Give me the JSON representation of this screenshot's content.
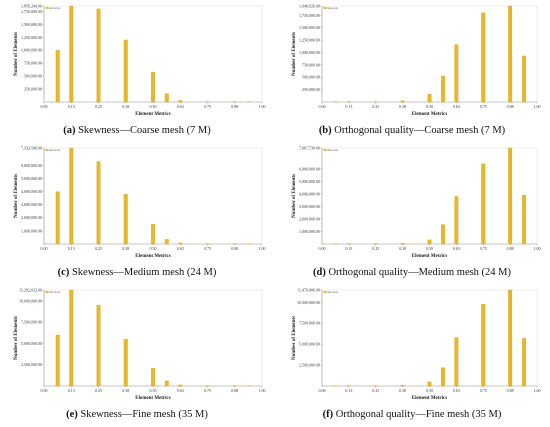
{
  "colors": {
    "bar": "#E8B828",
    "bar_edge": "#C89A10",
    "axis": "#999999",
    "plot_bg": "#ffffff"
  },
  "chart_data": [
    {
      "type": "bar",
      "caption_letter": "(a)",
      "caption_text": " Skewness—Coarse mesh (7 M)",
      "xlabel": "Element Metrics",
      "ylabel": "Number of Elements",
      "legend": "Elements",
      "xlim": [
        0,
        1
      ],
      "ylim": [
        0,
        1856244
      ],
      "x_ticks": [
        "0.00",
        "0.13",
        "0.25",
        "0.38",
        "0.50",
        "0.63",
        "0.75",
        "0.88",
        "1.00"
      ],
      "y_ticks": [
        "250,000.00",
        "500,000.00",
        "750,000.00",
        "1,000,000.00",
        "1,250,000.00",
        "1,500,000.00",
        "1,750,000.00",
        "1,856,244.00"
      ],
      "y_tick_values": [
        250000,
        500000,
        750000,
        1000000,
        1250000,
        1500000,
        1750000,
        1856244
      ],
      "x": [
        0.063,
        0.125,
        0.25,
        0.375,
        0.5,
        0.563,
        0.625,
        0.75,
        0.875,
        0.94
      ],
      "values": [
        1000000,
        1856244,
        1800000,
        1200000,
        575000,
        160000,
        30000,
        6000,
        3000,
        1500
      ]
    },
    {
      "type": "bar",
      "caption_letter": "(b)",
      "caption_text": " Orthogonal quality—Coarse mesh (7 M)",
      "xlabel": "Element Metrics",
      "ylabel": "Number of Elements",
      "legend": "Elements",
      "xlim": [
        0,
        1
      ],
      "ylim": [
        0,
        1940026
      ],
      "x_ticks": [
        "0.00",
        "0.13",
        "0.25",
        "0.38",
        "0.50",
        "0.63",
        "0.75",
        "0.88",
        "1.00"
      ],
      "y_ticks": [
        "250,000.00",
        "500,000.00",
        "750,000.00",
        "1,000,000.00",
        "1,250,000.00",
        "1,500,000.00",
        "1,750,000.00",
        "1,940,026.00"
      ],
      "y_tick_values": [
        250000,
        500000,
        750000,
        1000000,
        1250000,
        1500000,
        1750000,
        1940026
      ],
      "x": [
        0.063,
        0.125,
        0.25,
        0.375,
        0.5,
        0.563,
        0.625,
        0.75,
        0.875,
        0.94
      ],
      "values": [
        800,
        2000,
        6000,
        25000,
        160000,
        525000,
        1160000,
        1800000,
        1940026,
        930000
      ]
    },
    {
      "type": "bar",
      "caption_letter": "(c)",
      "caption_text": " Skewness—Medium mesh (24 M)",
      "xlabel": "Element Metrics",
      "ylabel": "Number of Elements",
      "legend": "Elements",
      "xlim": [
        0,
        1
      ],
      "ylim": [
        0,
        7333596
      ],
      "x_ticks": [
        "0.00",
        "0.13",
        "0.25",
        "0.38",
        "0.50",
        "0.63",
        "0.75",
        "0.88",
        "1.00"
      ],
      "y_ticks": [
        "1,000,000.00",
        "2,000,000.00",
        "3,000,000.00",
        "4,000,000.00",
        "5,000,000.00",
        "6,000,000.00",
        "7,333,596.00"
      ],
      "y_tick_values": [
        1000000,
        2000000,
        3000000,
        4000000,
        5000000,
        6000000,
        7333596
      ],
      "x": [
        0.063,
        0.125,
        0.25,
        0.375,
        0.5,
        0.563,
        0.625,
        0.75,
        0.875,
        0.94
      ],
      "values": [
        4000000,
        7333596,
        6300000,
        3800000,
        1500000,
        350000,
        80000,
        15000,
        5000,
        2000
      ]
    },
    {
      "type": "bar",
      "caption_letter": "(d)",
      "caption_text": " Orthogonal quality—Medium mesh (24 M)",
      "xlabel": "Element Metrics",
      "ylabel": "Number of Elements",
      "legend": "Elements",
      "xlim": [
        0,
        1
      ],
      "ylim": [
        0,
        7667739
      ],
      "x_ticks": [
        "0.00",
        "0.13",
        "0.25",
        "0.38",
        "0.50",
        "0.63",
        "0.75",
        "0.88",
        "1.00"
      ],
      "y_ticks": [
        "1,000,000.00",
        "2,000,000.00",
        "3,000,000.00",
        "4,000,000.00",
        "5,000,000.00",
        "6,000,000.00",
        "7,667,739.00"
      ],
      "y_tick_values": [
        1000000,
        2000000,
        3000000,
        4000000,
        5000000,
        6000000,
        7667739
      ],
      "x": [
        0.063,
        0.125,
        0.25,
        0.375,
        0.5,
        0.563,
        0.625,
        0.75,
        0.875,
        0.94
      ],
      "values": [
        2000,
        5000,
        15000,
        70000,
        330000,
        1550000,
        3800000,
        6400000,
        7667739,
        3900000
      ]
    },
    {
      "type": "bar",
      "caption_letter": "(e)",
      "caption_text": " Skewness—Fine mesh (35 M)",
      "xlabel": "Element Metrics",
      "ylabel": "Number of Elements",
      "legend": "Elements",
      "xlim": [
        0,
        1
      ],
      "ylim": [
        0,
        11292032
      ],
      "x_ticks": [
        "0.00",
        "0.13",
        "0.25",
        "0.38",
        "0.50",
        "0.63",
        "0.75",
        "0.88",
        "1.00"
      ],
      "y_ticks": [
        "2,500,000.00",
        "5,000,000.00",
        "7,500,000.00",
        "10,000,000.00",
        "11,292,032.00"
      ],
      "y_tick_values": [
        2500000,
        5000000,
        7500000,
        10000000,
        11292032
      ],
      "x": [
        0.063,
        0.125,
        0.25,
        0.375,
        0.5,
        0.563,
        0.625,
        0.75,
        0.875,
        0.94
      ],
      "values": [
        6000000,
        11292032,
        9500000,
        5500000,
        2100000,
        600000,
        130000,
        25000,
        8000,
        3000
      ]
    },
    {
      "type": "bar",
      "caption_letter": "(f)",
      "caption_text": " Orthogonal quality—Fine mesh (35 M)",
      "xlabel": "Element Metrics",
      "ylabel": "Number of Elements",
      "legend": "Elements",
      "xlim": [
        0,
        1
      ],
      "ylim": [
        0,
        11479006
      ],
      "x_ticks": [
        "0.00",
        "0.13",
        "0.25",
        "0.38",
        "0.50",
        "0.63",
        "0.75",
        "0.88",
        "1.00"
      ],
      "y_ticks": [
        "2,500,000.00",
        "5,000,000.00",
        "7,500,000.00",
        "10,000,000.00",
        "11,479,006.00"
      ],
      "y_tick_values": [
        2500000,
        5000000,
        7500000,
        10000000,
        11479006
      ],
      "x": [
        0.063,
        0.125,
        0.25,
        0.375,
        0.5,
        0.563,
        0.625,
        0.75,
        0.875,
        0.94
      ],
      "values": [
        3000,
        8000,
        25000,
        110000,
        500000,
        2200000,
        5800000,
        9800000,
        11479006,
        5700000
      ]
    }
  ]
}
